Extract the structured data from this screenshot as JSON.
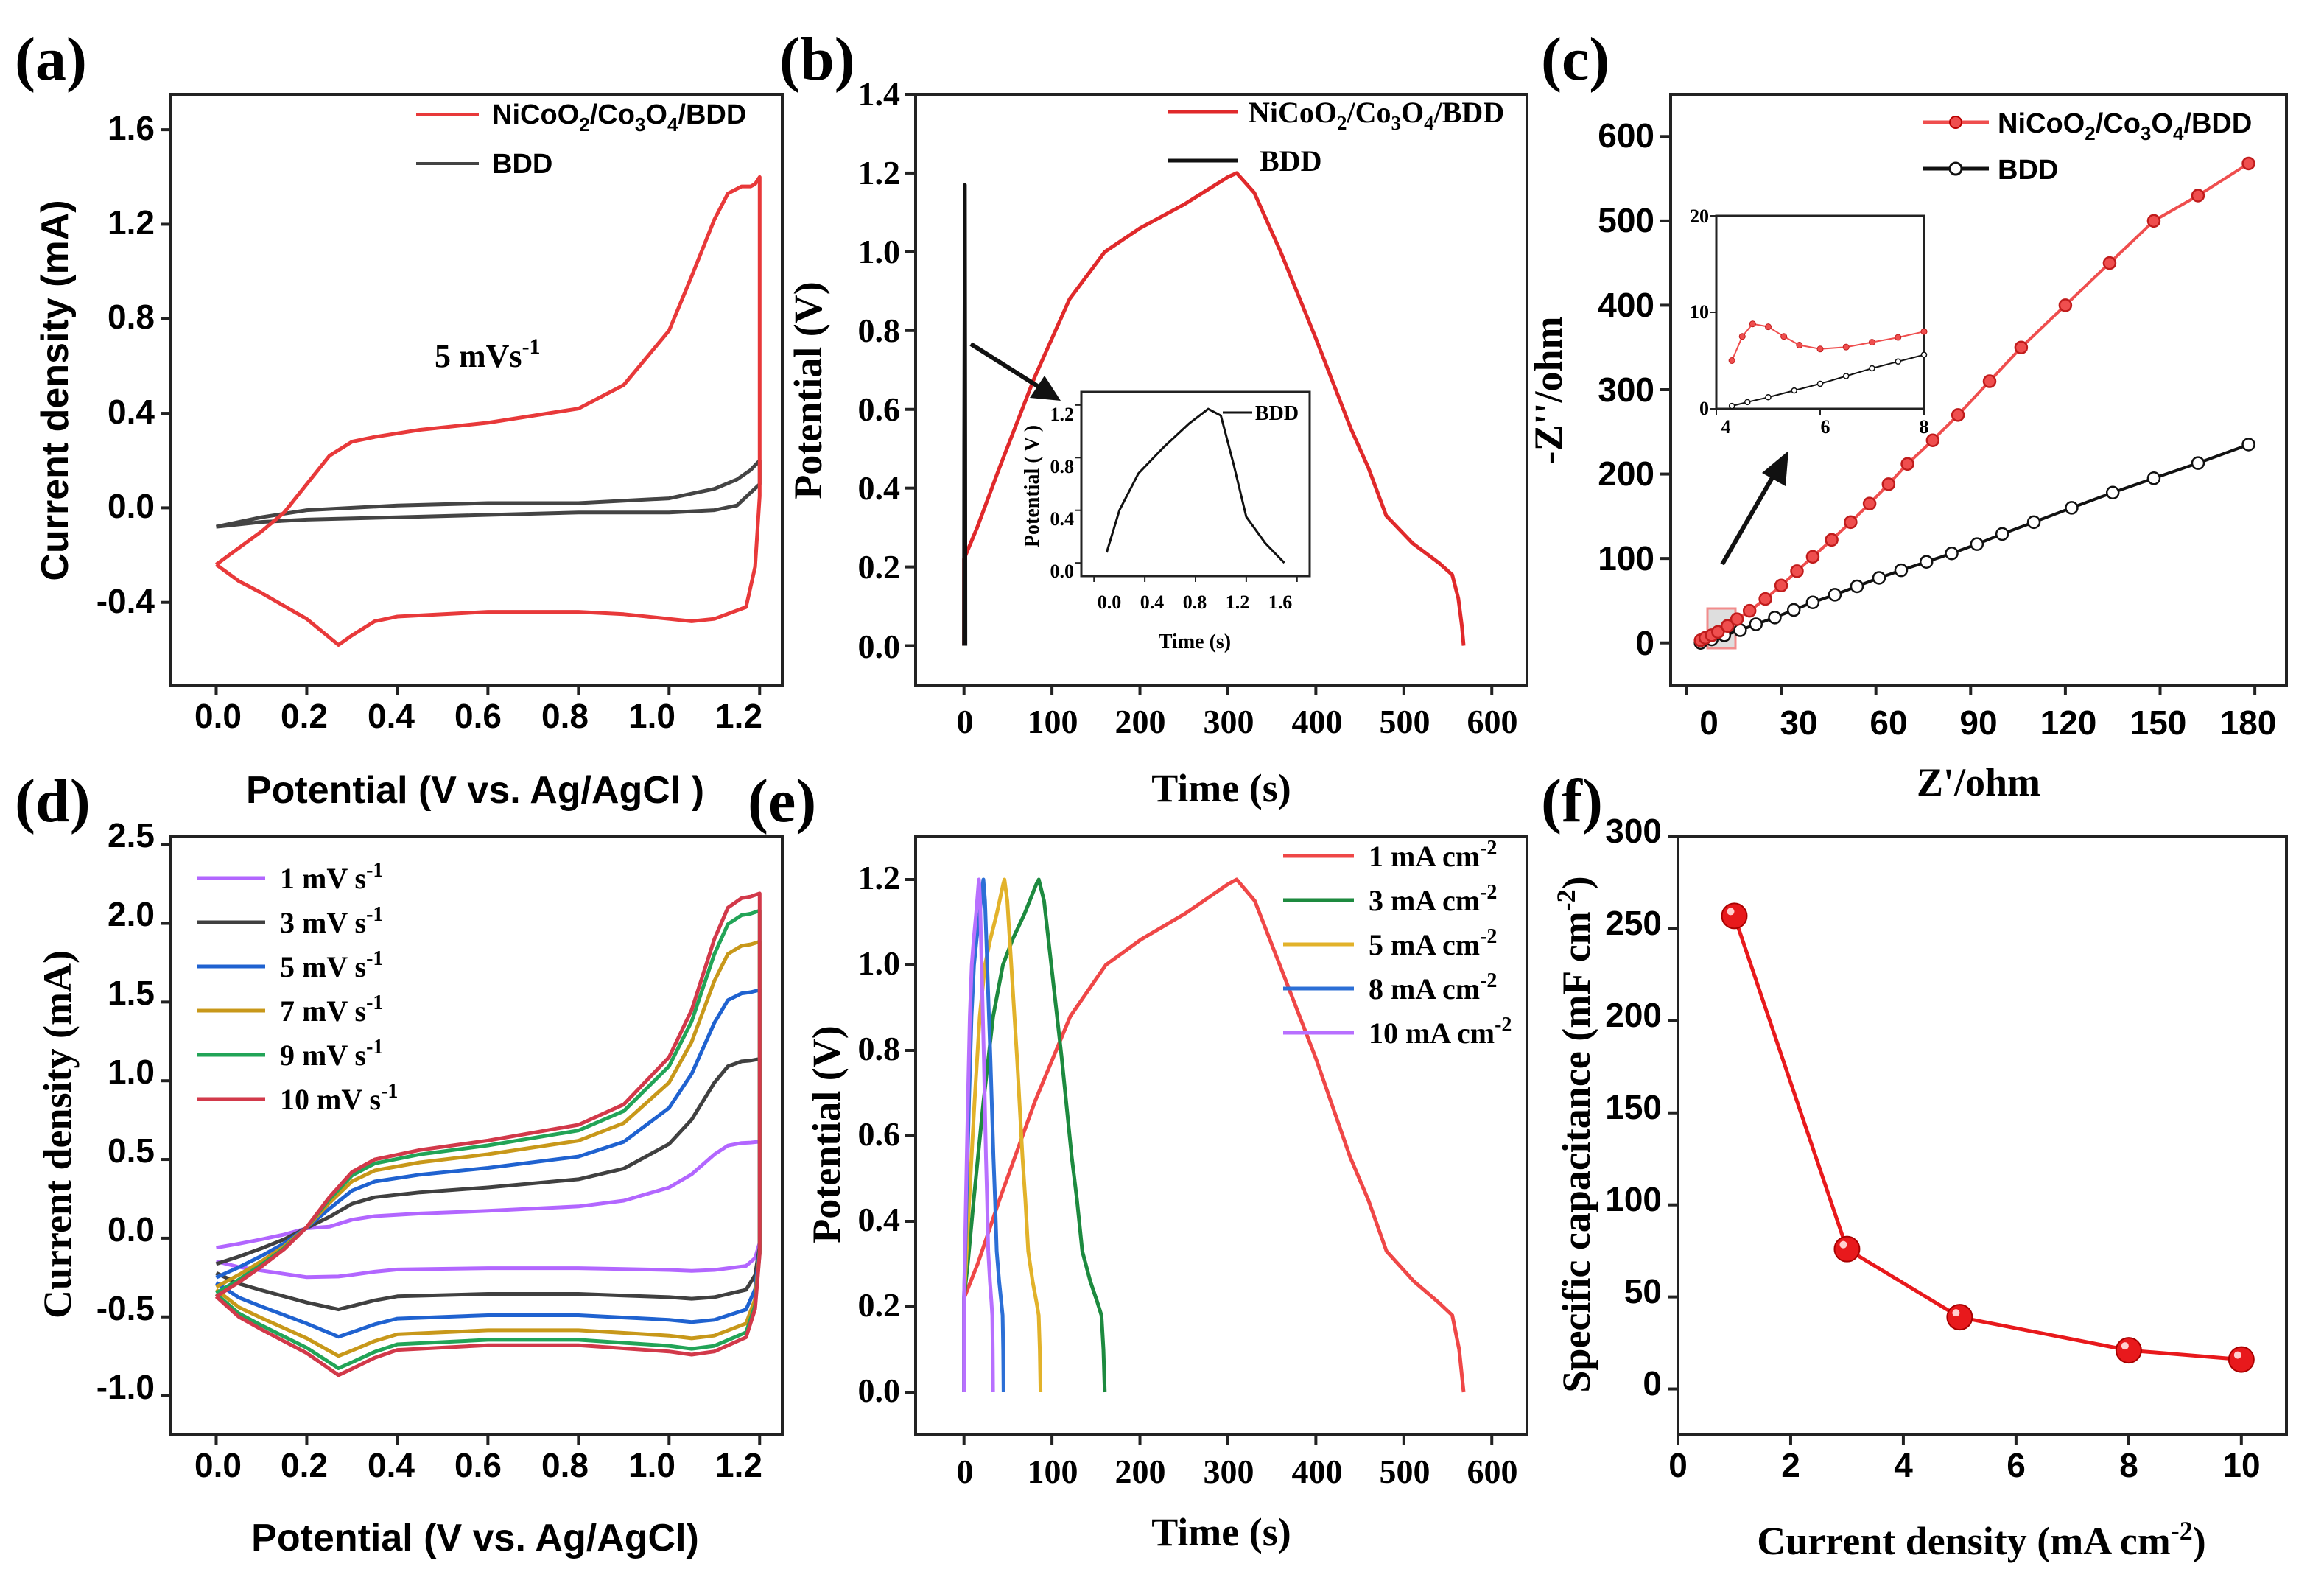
{
  "figure": {
    "panel_labels": [
      "(a)",
      "(b)",
      "(c)",
      "(d)",
      "(e)",
      "(f)"
    ]
  },
  "chart_data": [
    {
      "panel": "(a)",
      "type": "line",
      "xlabel": "Potential (V vs. Ag/AgCl )",
      "ylabel": "Current density (mA)",
      "xlim": [
        -0.1,
        1.25
      ],
      "ylim": [
        -0.75,
        1.75
      ],
      "xticks": [
        "0.0",
        "0.2",
        "0.4",
        "0.6",
        "0.8",
        "1.0",
        "1.2"
      ],
      "yticks": [
        "-0.4",
        "0.0",
        "0.4",
        "0.8",
        "1.2",
        "1.6"
      ],
      "annotation": "5 mVs",
      "annotation_sup": "-1",
      "series": [
        {
          "name": "NiCoO2/Co3O4/BDD",
          "color": "#e8393a",
          "x": [
            0.0,
            0.05,
            0.1,
            0.15,
            0.2,
            0.25,
            0.3,
            0.35,
            0.45,
            0.6,
            0.8,
            0.9,
            1.0,
            1.05,
            1.1,
            1.13,
            1.16,
            1.18,
            1.19,
            1.2,
            1.2,
            1.19,
            1.17,
            1.1,
            1.05,
            1.0,
            0.9,
            0.8,
            0.6,
            0.4,
            0.35,
            0.3,
            0.27,
            0.2,
            0.1,
            0.05,
            0.0
          ],
          "y": [
            -0.24,
            -0.17,
            -0.1,
            -0.02,
            0.1,
            0.22,
            0.28,
            0.3,
            0.33,
            0.36,
            0.42,
            0.52,
            0.75,
            0.98,
            1.22,
            1.33,
            1.36,
            1.36,
            1.37,
            1.4,
            0.05,
            -0.25,
            -0.42,
            -0.47,
            -0.48,
            -0.47,
            -0.45,
            -0.44,
            -0.44,
            -0.46,
            -0.48,
            -0.54,
            -0.58,
            -0.47,
            -0.36,
            -0.31,
            -0.24
          ]
        },
        {
          "name": "BDD",
          "color": "#444444",
          "x": [
            0.0,
            0.1,
            0.2,
            0.4,
            0.6,
            0.8,
            1.0,
            1.1,
            1.15,
            1.18,
            1.2,
            1.2,
            1.15,
            1.1,
            1.0,
            0.8,
            0.6,
            0.4,
            0.2,
            0.1,
            0.0
          ],
          "y": [
            -0.08,
            -0.04,
            -0.01,
            0.01,
            0.02,
            0.02,
            0.04,
            0.08,
            0.12,
            0.16,
            0.2,
            0.1,
            0.01,
            -0.01,
            -0.02,
            -0.02,
            -0.03,
            -0.04,
            -0.05,
            -0.06,
            -0.08
          ]
        }
      ]
    },
    {
      "panel": "(b)",
      "type": "line",
      "xlabel": "Time (s)",
      "ylabel": "Potential (V)",
      "xlim": [
        -55,
        640
      ],
      "ylim": [
        -0.1,
        1.4
      ],
      "xticks": [
        "0",
        "100",
        "200",
        "300",
        "400",
        "500",
        "600"
      ],
      "yticks": [
        "0.0",
        "0.2",
        "0.4",
        "0.6",
        "0.8",
        "1.0",
        "1.2",
        "1.4"
      ],
      "series": [
        {
          "name": "NiCoO2/Co3O4/BDD",
          "color": "#e0292b",
          "x": [
            0,
            0,
            15,
            40,
            80,
            120,
            160,
            200,
            250,
            300,
            310,
            330,
            360,
            400,
            440,
            460,
            480,
            510,
            540,
            555,
            562,
            566,
            568
          ],
          "y": [
            0.0,
            0.22,
            0.3,
            0.45,
            0.68,
            0.88,
            1.0,
            1.06,
            1.12,
            1.19,
            1.2,
            1.15,
            1.0,
            0.78,
            0.55,
            0.45,
            0.33,
            0.26,
            0.21,
            0.18,
            0.12,
            0.05,
            0.0
          ]
        },
        {
          "name": "BDD",
          "color": "#111111",
          "x": [
            0,
            0.3,
            0.6,
            1.0,
            1.4,
            1.6
          ],
          "y": [
            0.0,
            0.5,
            0.8,
            1.17,
            0.5,
            0.0
          ]
        }
      ],
      "inset": {
        "xlabel": "Time (s)",
        "ylabel": "Potential ( V )",
        "legend": "BDD",
        "xticks": [
          "0.0",
          "0.4",
          "0.8",
          "1.2",
          "1.6"
        ],
        "yticks": [
          "0.0",
          "0.4",
          "0.8",
          "1.2"
        ],
        "x": [
          0.1,
          0.2,
          0.35,
          0.55,
          0.75,
          0.9,
          1.0,
          1.1,
          1.2,
          1.35,
          1.5
        ],
        "y": [
          0.08,
          0.4,
          0.68,
          0.88,
          1.06,
          1.17,
          1.12,
          0.75,
          0.35,
          0.15,
          0.0
        ]
      }
    },
    {
      "panel": "(c)",
      "type": "scatter",
      "xlabel": "Z'/ohm",
      "ylabel": "-Z''/ohm",
      "xlim": [
        -5,
        190
      ],
      "ylim": [
        -50,
        650
      ],
      "xticks": [
        "0",
        "30",
        "60",
        "90",
        "120",
        "150",
        "180"
      ],
      "yticks": [
        "0",
        "100",
        "200",
        "300",
        "400",
        "500",
        "600"
      ],
      "series": [
        {
          "name": "NiCoO2/Co3O4/BDD",
          "color": "#ef4e4e",
          "x": [
            4.5,
            6,
            8,
            10,
            13,
            16,
            20,
            25,
            30,
            35,
            40,
            46,
            52,
            58,
            64,
            70,
            78,
            86,
            96,
            106,
            120,
            134,
            148,
            162,
            178
          ],
          "y": [
            3,
            6,
            9,
            13,
            20,
            28,
            38,
            52,
            68,
            85,
            102,
            122,
            143,
            165,
            188,
            212,
            240,
            270,
            310,
            350,
            400,
            450,
            500,
            530,
            568
          ]
        },
        {
          "name": "BDD",
          "color": "#111111",
          "x": [
            4.5,
            8,
            12,
            17,
            22,
            28,
            34,
            40,
            47,
            54,
            61,
            68,
            76,
            84,
            92,
            100,
            110,
            122,
            135,
            148,
            162,
            178
          ],
          "y": [
            0,
            4,
            9,
            15,
            22,
            30,
            39,
            48,
            57,
            67,
            77,
            86,
            96,
            106,
            117,
            129,
            143,
            160,
            178,
            195,
            213,
            235
          ]
        }
      ],
      "inset": {
        "xticks": [
          "4",
          "6",
          "8"
        ],
        "yticks": [
          "0",
          "10",
          "20"
        ],
        "red_x": [
          4.3,
          4.5,
          4.7,
          5.0,
          5.3,
          5.6,
          6.0,
          6.5,
          7.0,
          7.5,
          8.0
        ],
        "red_y": [
          5,
          7.5,
          8.8,
          8.5,
          7.5,
          6.6,
          6.2,
          6.4,
          6.9,
          7.4,
          8.0
        ],
        "black_x": [
          4.3,
          4.6,
          5.0,
          5.5,
          6.0,
          6.5,
          7.0,
          7.5,
          8.0
        ],
        "black_y": [
          0.3,
          0.7,
          1.2,
          1.9,
          2.6,
          3.4,
          4.2,
          4.9,
          5.6
        ]
      }
    },
    {
      "panel": "(d)",
      "type": "line",
      "xlabel": "Potential (V vs. Ag/AgCl)",
      "ylabel": "Current density (mA)",
      "xlim": [
        -0.1,
        1.25
      ],
      "ylim": [
        -1.25,
        2.55
      ],
      "xticks": [
        "0.0",
        "0.2",
        "0.4",
        "0.6",
        "0.8",
        "1.0",
        "1.2"
      ],
      "yticks": [
        "-1.0",
        "-0.5",
        "0.0",
        "0.5",
        "1.0",
        "1.5",
        "2.0",
        "2.5"
      ],
      "legend_unit": " mV s",
      "legend_sup": "-1",
      "series": [
        {
          "name": "1",
          "color": "#b266ff",
          "scale": 0.28
        },
        {
          "name": "3",
          "color": "#404040",
          "scale": 0.52
        },
        {
          "name": "5",
          "color": "#1f62d0",
          "scale": 0.72
        },
        {
          "name": "7",
          "color": "#c8981a",
          "scale": 0.86
        },
        {
          "name": "9",
          "color": "#22a457",
          "scale": 0.95
        },
        {
          "name": "10",
          "color": "#d2394a",
          "scale": 1.0
        }
      ],
      "base_curve": {
        "x": [
          0.0,
          0.05,
          0.1,
          0.15,
          0.2,
          0.25,
          0.3,
          0.35,
          0.45,
          0.6,
          0.8,
          0.9,
          1.0,
          1.05,
          1.1,
          1.13,
          1.16,
          1.18,
          1.2,
          1.2,
          1.19,
          1.17,
          1.1,
          1.05,
          1.0,
          0.9,
          0.8,
          0.6,
          0.4,
          0.35,
          0.3,
          0.27,
          0.2,
          0.1,
          0.05,
          0.0
        ],
        "y": [
          -0.37,
          -0.28,
          -0.18,
          -0.07,
          0.07,
          0.26,
          0.42,
          0.5,
          0.56,
          0.62,
          0.72,
          0.85,
          1.15,
          1.45,
          1.9,
          2.1,
          2.16,
          2.17,
          2.19,
          -0.1,
          -0.45,
          -0.63,
          -0.72,
          -0.74,
          -0.72,
          -0.7,
          -0.68,
          -0.68,
          -0.71,
          -0.76,
          -0.83,
          -0.87,
          -0.73,
          -0.58,
          -0.5,
          -0.37
        ]
      }
    },
    {
      "panel": "(e)",
      "type": "line",
      "xlabel": "Time (s)",
      "ylabel": "Potential (V)",
      "xlim": [
        -55,
        640
      ],
      "ylim": [
        -0.1,
        1.3
      ],
      "xticks": [
        "0",
        "100",
        "200",
        "300",
        "400",
        "500",
        "600"
      ],
      "yticks": [
        "0.0",
        "0.2",
        "0.4",
        "0.6",
        "0.8",
        "1.0",
        "1.2"
      ],
      "legend_unit": " mA cm",
      "legend_sup": "-2",
      "series": [
        {
          "name": "1",
          "color": "#ef4747",
          "charge_end": 310,
          "total": 568
        },
        {
          "name": "3",
          "color": "#1d8a3f",
          "charge_end": 85,
          "total": 160
        },
        {
          "name": "5",
          "color": "#e2b22a",
          "charge_end": 46,
          "total": 87
        },
        {
          "name": "8",
          "color": "#2c6fd6",
          "charge_end": 22,
          "total": 45
        },
        {
          "name": "10",
          "color": "#b870ff",
          "charge_end": 17,
          "total": 33
        }
      ]
    },
    {
      "panel": "(f)",
      "type": "line",
      "xlabel": "Current density (mA cm",
      "xlabel_sup": "-2",
      "xlabel_end": ")",
      "ylabel": "Specific capacitance (mF cm",
      "ylabel_sup": "-2",
      "ylabel_end": ")",
      "xlim": [
        0,
        10.8
      ],
      "ylim": [
        -25,
        300
      ],
      "xticks": [
        "0",
        "2",
        "4",
        "6",
        "8",
        "10"
      ],
      "yticks": [
        "0",
        "50",
        "100",
        "150",
        "200",
        "250",
        "300"
      ],
      "series": [
        {
          "name": "Specific capacitance",
          "color": "#e8191c",
          "x": [
            1,
            3,
            5,
            8,
            10
          ],
          "y": [
            257,
            76,
            39,
            21,
            16
          ]
        }
      ]
    }
  ],
  "legends": {
    "a": [
      "NiCoO",
      "2",
      "/Co",
      "3",
      "O",
      "4",
      "/BDD",
      "BDD"
    ],
    "b": [
      "NiCoO",
      "2",
      "/Co",
      "3",
      "O",
      "4",
      "/BDD",
      "BDD"
    ],
    "c": [
      "NiCoO",
      "2",
      "/Co",
      "3",
      "O",
      "4",
      "/BDD",
      "BDD"
    ]
  }
}
